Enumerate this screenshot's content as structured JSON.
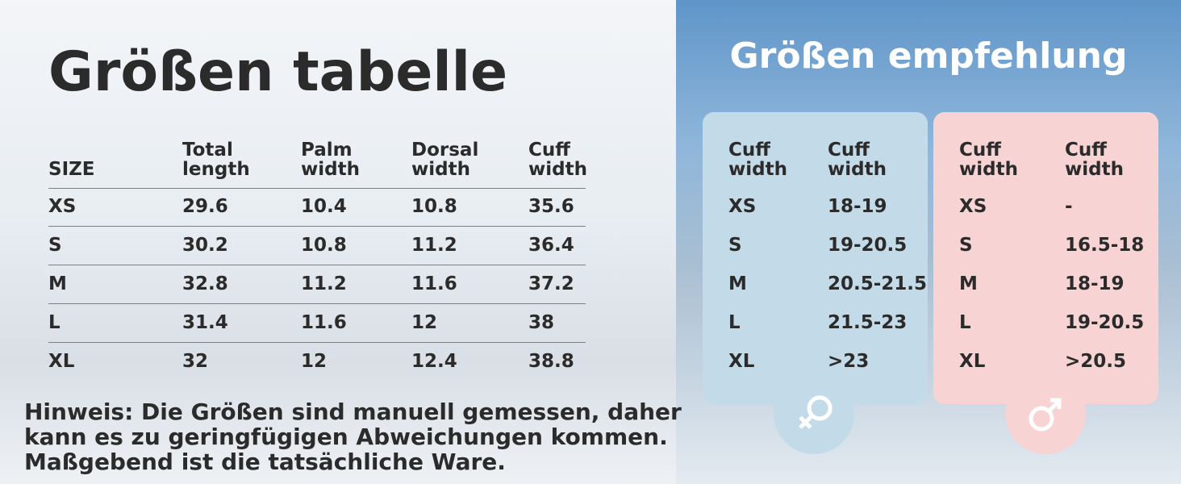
{
  "left": {
    "title": "Größen  tabelle",
    "table": {
      "header": [
        "SIZE",
        "Total length",
        "Palm width",
        "Dorsal width",
        "Cuff width"
      ],
      "rows": [
        [
          "XS",
          "29.6",
          "10.4",
          "10.8",
          "35.6"
        ],
        [
          "S",
          "30.2",
          "10.8",
          "11.2",
          "36.4"
        ],
        [
          "M",
          "32.8",
          "11.2",
          "11.6",
          "37.2"
        ],
        [
          "L",
          "31.4",
          "11.6",
          "12",
          "38"
        ],
        [
          "XL",
          "32",
          "12",
          "12.4",
          "38.8"
        ]
      ]
    },
    "note": {
      "lines": [
        "Hinweis: Die Größen sind manuell gemessen, daher",
        "kann es zu geringfügigen Abweichungen kommen.",
        "Maßgebend ist die tatsächliche Ware."
      ]
    }
  },
  "right": {
    "title": "Größen empfehlung",
    "female": {
      "header": [
        "Cuff width",
        "Cuff width"
      ],
      "rows": [
        [
          "XS",
          "18-19"
        ],
        [
          "S",
          "19-20.5"
        ],
        [
          "M",
          "20.5-21.5"
        ],
        [
          "L",
          "21.5-23"
        ],
        [
          "XL",
          ">23"
        ]
      ]
    },
    "male": {
      "header": [
        "Cuff width",
        "Cuff width"
      ],
      "rows": [
        [
          "XS",
          "-"
        ],
        [
          "S",
          "16.5-18"
        ],
        [
          "M",
          "18-19"
        ],
        [
          "L",
          "19-20.5"
        ],
        [
          "XL",
          ">20.5"
        ]
      ]
    }
  }
}
